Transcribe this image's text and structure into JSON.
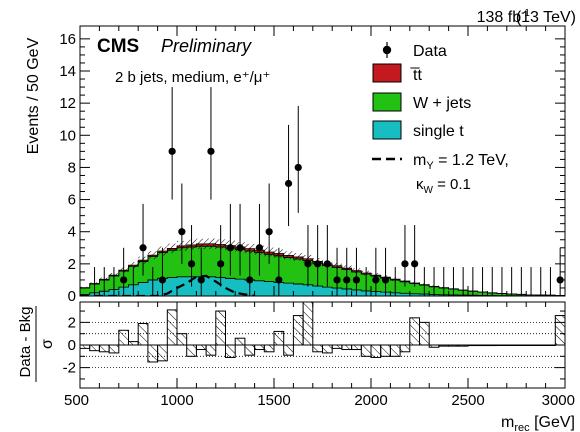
{
  "header": {
    "lumi_text": "138 fb",
    "lumi_sup": "-1",
    "energy_text": "(13 TeV)",
    "experiment": "CMS",
    "status": "Preliminary"
  },
  "colors": {
    "ttbar": "#c4191f",
    "wjets": "#22c112",
    "singlet": "#16bec1",
    "data": "#000000",
    "signal": "#000000"
  },
  "chart_data": [
    {
      "type": "histogram",
      "category_label": "2 b jets, medium, e⁺/μ⁺",
      "ylabel": "Events / 50 GeV",
      "xlim": [
        500,
        3000
      ],
      "ylim": [
        0,
        16.8
      ],
      "yticks": [
        0,
        2,
        4,
        6,
        8,
        10,
        12,
        14,
        16
      ],
      "bin_width": 50,
      "legend": {
        "position": "top-right",
        "entries": [
          {
            "key": "data",
            "label": "Data",
            "style": "marker"
          },
          {
            "key": "ttbar",
            "label": "t̅t",
            "style": "fill"
          },
          {
            "key": "wjets",
            "label": "W + jets",
            "style": "fill"
          },
          {
            "key": "singlet",
            "label": "single t",
            "style": "fill"
          },
          {
            "key": "signal",
            "label": "m",
            "label_sub": "Y",
            "label_rest": " = 1.2 TeV,",
            "label2": "κ",
            "label2_sub": "W",
            "label2_rest": " = 0.1",
            "style": "dashed"
          }
        ]
      },
      "background": {
        "bin_edges": [
          500,
          3000
        ],
        "singlet": [
          0.1,
          0.2,
          0.3,
          0.4,
          0.55,
          0.7,
          0.85,
          1.0,
          1.1,
          1.15,
          1.2,
          1.2,
          1.2,
          1.2,
          1.15,
          1.1,
          1.05,
          1.0,
          0.95,
          0.9,
          0.85,
          0.8,
          0.75,
          0.7,
          0.62,
          0.55,
          0.5,
          0.44,
          0.38,
          0.32,
          0.28,
          0.24,
          0.2,
          0.17,
          0.14,
          0.12,
          0.1,
          0.08,
          0.07,
          0.06,
          0.05,
          0.04,
          0.03,
          0.02,
          0.02,
          0.02,
          0.01,
          0.01,
          0.01,
          0.01
        ],
        "wjets": [
          0.4,
          0.55,
          0.7,
          0.85,
          1.0,
          1.15,
          1.3,
          1.45,
          1.6,
          1.7,
          1.8,
          1.85,
          1.9,
          1.9,
          1.9,
          1.88,
          1.85,
          1.8,
          1.75,
          1.7,
          1.65,
          1.6,
          1.55,
          1.5,
          1.42,
          1.35,
          1.28,
          1.2,
          1.12,
          1.04,
          0.96,
          0.88,
          0.8,
          0.72,
          0.64,
          0.56,
          0.48,
          0.42,
          0.36,
          0.3,
          0.25,
          0.2,
          0.16,
          0.13,
          0.1,
          0.08,
          0.06,
          0.05,
          0.04,
          0.03
        ],
        "ttbar": [
          0.02,
          0.03,
          0.04,
          0.05,
          0.06,
          0.07,
          0.08,
          0.09,
          0.1,
          0.11,
          0.12,
          0.13,
          0.14,
          0.15,
          0.15,
          0.15,
          0.15,
          0.15,
          0.15,
          0.14,
          0.14,
          0.13,
          0.13,
          0.12,
          0.11,
          0.1,
          0.1,
          0.09,
          0.08,
          0.07,
          0.06,
          0.05,
          0.05,
          0.04,
          0.03,
          0.03,
          0.02,
          0.02,
          0.02,
          0.01,
          0.01,
          0.01,
          0.01,
          0.01,
          0.01,
          0.01,
          0.0,
          0.0,
          0.0,
          0.0
        ],
        "unc_frac": 0.1
      },
      "signal": {
        "label": "m_Y = 1.2 TeV, κ_W = 0.1",
        "points": [
          [
            500,
            0
          ],
          [
            900,
            0
          ],
          [
            950,
            0.15
          ],
          [
            1000,
            0.5
          ],
          [
            1050,
            0.8
          ],
          [
            1100,
            1.2
          ],
          [
            1150,
            1.25
          ],
          [
            1200,
            0.9
          ],
          [
            1250,
            0.5
          ],
          [
            1300,
            0.2
          ],
          [
            1350,
            0.1
          ],
          [
            1400,
            0
          ]
        ]
      },
      "data": {
        "x": [
          725,
          825,
          925,
          975,
          1025,
          1075,
          1125,
          1175,
          1225,
          1275,
          1325,
          1375,
          1425,
          1475,
          1525,
          1575,
          1625,
          1675,
          1725,
          1775,
          1825,
          1875,
          1925,
          2025,
          2075,
          2175,
          2225,
          2975
        ],
        "y": [
          1,
          3,
          1,
          9,
          4,
          2,
          1,
          9,
          2,
          3,
          3,
          1,
          3,
          4,
          1,
          7,
          8,
          2,
          2,
          2,
          1,
          1,
          1,
          1,
          1,
          2,
          2,
          1
        ]
      }
    },
    {
      "type": "histogram",
      "ylabel": "Data - Bkg",
      "ylabel2": "σ",
      "xlabel": "m",
      "xlabel_sub": "rec",
      "xlabel_unit": " [GeV]",
      "xlim": [
        500,
        3000
      ],
      "ylim": [
        -3.8,
        3.8
      ],
      "yticks": [
        -2,
        0,
        2
      ],
      "xticks": [
        500,
        1000,
        1500,
        2000,
        2500,
        3000
      ],
      "gridlines": [
        -2,
        -1,
        1,
        2
      ],
      "bin_edges": [
        500,
        550,
        600,
        650,
        700,
        750,
        800,
        850,
        900,
        950,
        1000,
        1050,
        1100,
        1150,
        1200,
        1250,
        1300,
        1350,
        1400,
        1450,
        1500,
        1550,
        1600,
        1650,
        1700,
        1750,
        1800,
        1850,
        1900,
        1950,
        2000,
        2050,
        2100,
        2150,
        2200,
        2250,
        2300,
        2350,
        2400,
        2450,
        2500,
        2550,
        2600,
        2650,
        2700,
        2750,
        2800,
        2850,
        2900,
        2950,
        3000
      ],
      "pulls": [
        -0.3,
        -0.5,
        -0.6,
        -0.7,
        1.3,
        0.3,
        1.9,
        -1.5,
        -1.4,
        3.1,
        1.0,
        -1.0,
        -0.4,
        -0.9,
        3.0,
        -1.1,
        0.6,
        -0.9,
        -0.4,
        -0.6,
        1.2,
        -0.9,
        2.6,
        3.8,
        -0.6,
        -0.7,
        -0.3,
        -0.4,
        -0.4,
        -1.0,
        -1.1,
        -1.0,
        -1.0,
        -0.6,
        2.4,
        2.0,
        -0.2,
        -0.1,
        -0.1,
        -0.1,
        -0.05,
        -0.05,
        -0.05,
        0.0,
        0.0,
        0.0,
        0.0,
        0.0,
        0.0,
        2.6
      ]
    }
  ]
}
